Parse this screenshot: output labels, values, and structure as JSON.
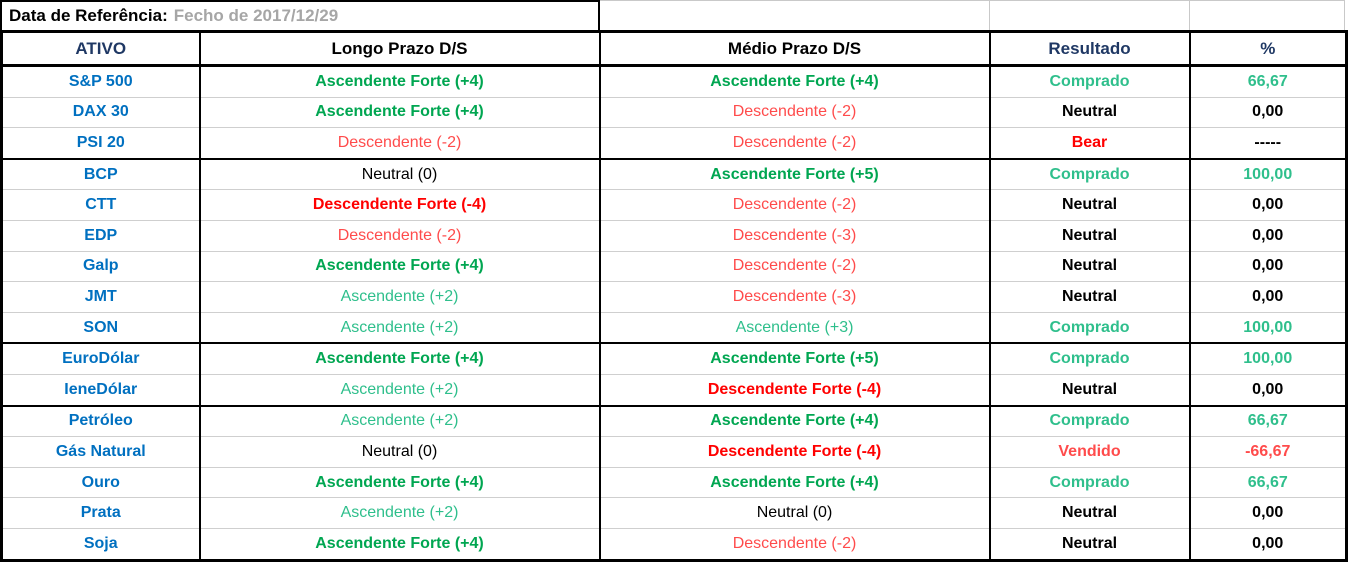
{
  "title": {
    "label": "Data de Referência:",
    "value": "Fecho de 2017/12/29"
  },
  "columns": [
    {
      "label": "ATIVO",
      "style": "navy"
    },
    {
      "label": "Longo Prazo D/S",
      "style": "black"
    },
    {
      "label": "Médio Prazo D/S",
      "style": "black"
    },
    {
      "label": "Resultado",
      "style": "navy"
    },
    {
      "label": "%",
      "style": "navy"
    }
  ],
  "rows": [
    {
      "ativo": "S&P 500",
      "cells": [
        {
          "text": "Ascendente Forte (+4)",
          "style": "green-strong"
        },
        {
          "text": "Ascendente Forte (+4)",
          "style": "green-strong"
        },
        {
          "text": "Comprado",
          "style": "green-light"
        },
        {
          "text": "66,67",
          "style": "green-light"
        }
      ],
      "group_end": false
    },
    {
      "ativo": "DAX 30",
      "cells": [
        {
          "text": "Ascendente Forte (+4)",
          "style": "green-strong"
        },
        {
          "text": "Descendente (-2)",
          "style": "red-light"
        },
        {
          "text": "Neutral",
          "style": "black"
        },
        {
          "text": "0,00",
          "style": "black"
        }
      ],
      "group_end": false
    },
    {
      "ativo": "PSI 20",
      "cells": [
        {
          "text": "Descendente (-2)",
          "style": "red-light"
        },
        {
          "text": "Descendente (-2)",
          "style": "red-light"
        },
        {
          "text": "Bear",
          "style": "red-strong"
        },
        {
          "text": "-----",
          "style": "black"
        }
      ],
      "group_end": true
    },
    {
      "ativo": "BCP",
      "cells": [
        {
          "text": "Neutral (0)",
          "style": "black"
        },
        {
          "text": "Ascendente Forte (+5)",
          "style": "green-strong"
        },
        {
          "text": "Comprado",
          "style": "green-light"
        },
        {
          "text": "100,00",
          "style": "green-light"
        }
      ],
      "group_end": false
    },
    {
      "ativo": "CTT",
      "cells": [
        {
          "text": "Descendente Forte (-4)",
          "style": "red-strong"
        },
        {
          "text": "Descendente (-2)",
          "style": "red-light"
        },
        {
          "text": "Neutral",
          "style": "black"
        },
        {
          "text": "0,00",
          "style": "black"
        }
      ],
      "group_end": false
    },
    {
      "ativo": "EDP",
      "cells": [
        {
          "text": "Descendente (-2)",
          "style": "red-light"
        },
        {
          "text": "Descendente (-3)",
          "style": "red-light"
        },
        {
          "text": "Neutral",
          "style": "black"
        },
        {
          "text": "0,00",
          "style": "black"
        }
      ],
      "group_end": false
    },
    {
      "ativo": "Galp",
      "cells": [
        {
          "text": "Ascendente Forte (+4)",
          "style": "green-strong"
        },
        {
          "text": "Descendente (-2)",
          "style": "red-light"
        },
        {
          "text": "Neutral",
          "style": "black"
        },
        {
          "text": "0,00",
          "style": "black"
        }
      ],
      "group_end": false
    },
    {
      "ativo": "JMT",
      "cells": [
        {
          "text": "Ascendente (+2)",
          "style": "green-light"
        },
        {
          "text": "Descendente (-3)",
          "style": "red-light"
        },
        {
          "text": "Neutral",
          "style": "black"
        },
        {
          "text": "0,00",
          "style": "black"
        }
      ],
      "group_end": false
    },
    {
      "ativo": "SON",
      "cells": [
        {
          "text": "Ascendente (+2)",
          "style": "green-light"
        },
        {
          "text": "Ascendente (+3)",
          "style": "green-light"
        },
        {
          "text": "Comprado",
          "style": "green-light"
        },
        {
          "text": "100,00",
          "style": "green-light"
        }
      ],
      "group_end": true
    },
    {
      "ativo": "EuroDólar",
      "cells": [
        {
          "text": "Ascendente Forte (+4)",
          "style": "green-strong"
        },
        {
          "text": "Ascendente Forte (+5)",
          "style": "green-strong"
        },
        {
          "text": "Comprado",
          "style": "green-light"
        },
        {
          "text": "100,00",
          "style": "green-light"
        }
      ],
      "group_end": false
    },
    {
      "ativo": "IeneDólar",
      "cells": [
        {
          "text": "Ascendente (+2)",
          "style": "green-light"
        },
        {
          "text": "Descendente Forte (-4)",
          "style": "red-strong"
        },
        {
          "text": "Neutral",
          "style": "black"
        },
        {
          "text": "0,00",
          "style": "black"
        }
      ],
      "group_end": true
    },
    {
      "ativo": "Petróleo",
      "cells": [
        {
          "text": "Ascendente (+2)",
          "style": "green-light"
        },
        {
          "text": "Ascendente Forte (+4)",
          "style": "green-strong"
        },
        {
          "text": "Comprado",
          "style": "green-light"
        },
        {
          "text": "66,67",
          "style": "green-light"
        }
      ],
      "group_end": false
    },
    {
      "ativo": "Gás Natural",
      "cells": [
        {
          "text": "Neutral (0)",
          "style": "black"
        },
        {
          "text": "Descendente Forte (-4)",
          "style": "red-strong"
        },
        {
          "text": "Vendido",
          "style": "red-light"
        },
        {
          "text": "-66,67",
          "style": "red-light"
        }
      ],
      "group_end": false
    },
    {
      "ativo": "Ouro",
      "cells": [
        {
          "text": "Ascendente Forte (+4)",
          "style": "green-strong"
        },
        {
          "text": "Ascendente Forte (+4)",
          "style": "green-strong"
        },
        {
          "text": "Comprado",
          "style": "green-light"
        },
        {
          "text": "66,67",
          "style": "green-light"
        }
      ],
      "group_end": false
    },
    {
      "ativo": "Prata",
      "cells": [
        {
          "text": "Ascendente (+2)",
          "style": "green-light"
        },
        {
          "text": "Neutral (0)",
          "style": "black"
        },
        {
          "text": "Neutral",
          "style": "black"
        },
        {
          "text": "0,00",
          "style": "black"
        }
      ],
      "group_end": false
    },
    {
      "ativo": "Soja",
      "cells": [
        {
          "text": "Ascendente Forte (+4)",
          "style": "green-strong"
        },
        {
          "text": "Descendente (-2)",
          "style": "red-light"
        },
        {
          "text": "Neutral",
          "style": "black"
        },
        {
          "text": "0,00",
          "style": "black"
        }
      ],
      "group_end": false
    }
  ],
  "colors": {
    "navy": "#1F3864",
    "blue": "#0070C0",
    "green-strong": "#00A651",
    "green-light": "#2FBF8C",
    "red-strong": "#FF0000",
    "red-light": "#FF4B4B",
    "gray-muted": "#A6A6A6",
    "grid-gray": "#CFCFCF"
  }
}
